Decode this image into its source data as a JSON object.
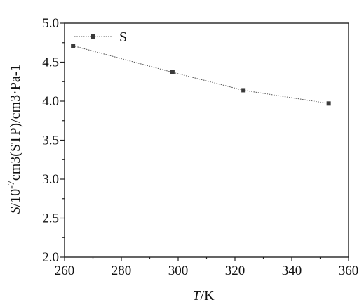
{
  "chart_data": {
    "type": "line",
    "xlabel_italic": "T",
    "xlabel_rest": "/K",
    "ylabel_italic": "S",
    "ylabel_rest_base": "/10",
    "ylabel_rest_sup": "-7",
    "ylabel_rest_tail": "cm3(STP)/cm3·Pa-1",
    "xlim": [
      260,
      360
    ],
    "ylim": [
      2.0,
      5.0
    ],
    "xticks": [
      260,
      280,
      300,
      320,
      340,
      360
    ],
    "xtick_labels": [
      "260",
      "280",
      "300",
      "320",
      "340",
      "360"
    ],
    "yticks": [
      2.0,
      2.5,
      3.0,
      3.5,
      4.0,
      4.5,
      5.0
    ],
    "ytick_labels": [
      "2.0",
      "2.5",
      "3.0",
      "3.5",
      "4.0",
      "4.5",
      "5.0"
    ],
    "legend_position": "top-left",
    "grid": false,
    "series": [
      {
        "name": "S",
        "x": [
          263,
          298,
          323,
          353
        ],
        "y": [
          4.71,
          4.37,
          4.14,
          3.97
        ],
        "color": "#3a3a3a",
        "marker": "square",
        "line_style": "dotted"
      }
    ]
  }
}
